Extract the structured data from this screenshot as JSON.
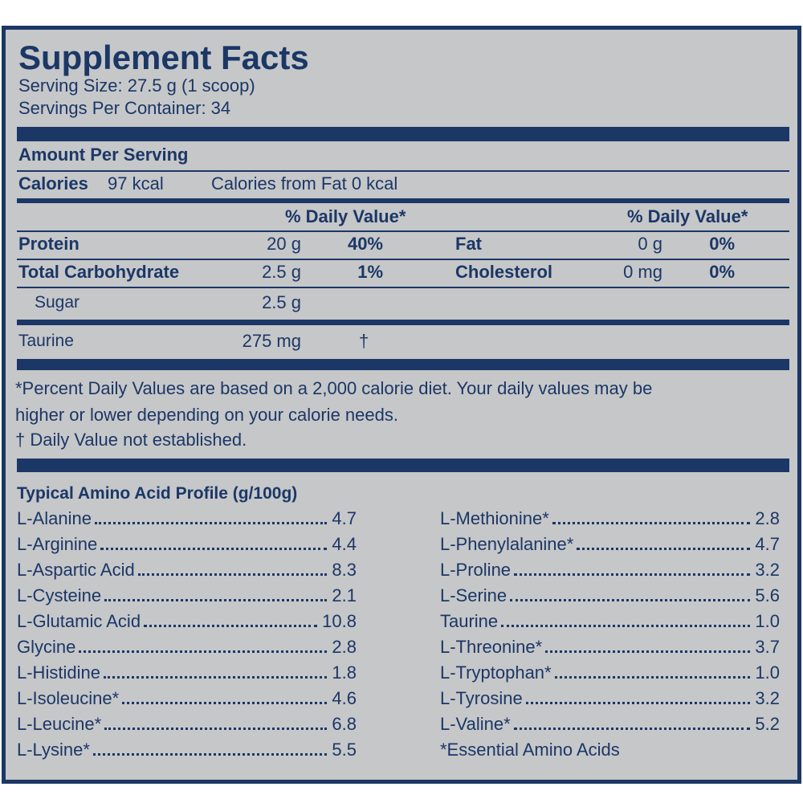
{
  "header": {
    "title": "Supplement Facts",
    "serving_size": "Serving Size: 27.5 g (1 scoop)",
    "servings_per_container": "Servings Per Container: 34"
  },
  "amount": {
    "heading": "Amount Per Serving",
    "calories_label": "Calories",
    "calories_value": "97 kcal",
    "calories_from_fat": "Calories from Fat 0 kcal"
  },
  "daily_value_headers": [
    "% Daily Value*",
    "% Daily Value*"
  ],
  "nutrients": {
    "left": [
      {
        "name": "Protein",
        "amount": "20 g",
        "dv": "40%"
      },
      {
        "name": "Total Carbohydrate",
        "amount": "2.5 g",
        "dv": "1%"
      },
      {
        "name": "Sugar",
        "amount": "2.5 g"
      }
    ],
    "right": [
      {
        "name": "Fat",
        "amount": "0 g",
        "dv": "0%"
      },
      {
        "name": "Cholesterol",
        "amount": "0 mg",
        "dv": "0%"
      }
    ]
  },
  "other": {
    "name": "Taurine",
    "amount": "275 mg",
    "dv": "†"
  },
  "footnotes": [
    "*Percent Daily Values are based on a 2,000 calorie diet. Your daily values may be",
    "higher or lower depending on your calorie needs.",
    "† Daily Value not established."
  ],
  "amino_acids": {
    "title": "Typical Amino Acid Profile (g/100g)",
    "left": [
      {
        "name": "L-Alanine",
        "value": "4.7"
      },
      {
        "name": "L-Arginine",
        "value": "4.4"
      },
      {
        "name": "L-Aspartic Acid",
        "value": "8.3"
      },
      {
        "name": "L-Cysteine",
        "value": "2.1"
      },
      {
        "name": "L-Glutamic Acid",
        "value": "10.8"
      },
      {
        "name": "Glycine",
        "value": "2.8"
      },
      {
        "name": "L-Histidine",
        "value": "1.8"
      },
      {
        "name": "L-Isoleucine*",
        "value": "4.6"
      },
      {
        "name": "L-Leucine*",
        "value": "6.8"
      },
      {
        "name": "L-Lysine*",
        "value": "5.5"
      }
    ],
    "right": [
      {
        "name": "L-Methionine*",
        "value": "2.8"
      },
      {
        "name": "L-Phenylalanine*",
        "value": "4.7"
      },
      {
        "name": "L-Proline",
        "value": "3.2"
      },
      {
        "name": "L-Serine",
        "value": "5.6"
      },
      {
        "name": "Taurine",
        "value": "1.0"
      },
      {
        "name": "L-Threonine*",
        "value": "3.7"
      },
      {
        "name": "L-Tryptophan*",
        "value": "1.0"
      },
      {
        "name": "L-Tyrosine",
        "value": "3.2"
      },
      {
        "name": "L-Valine*",
        "value": "5.2"
      }
    ],
    "note": "*Essential Amino Acids"
  }
}
